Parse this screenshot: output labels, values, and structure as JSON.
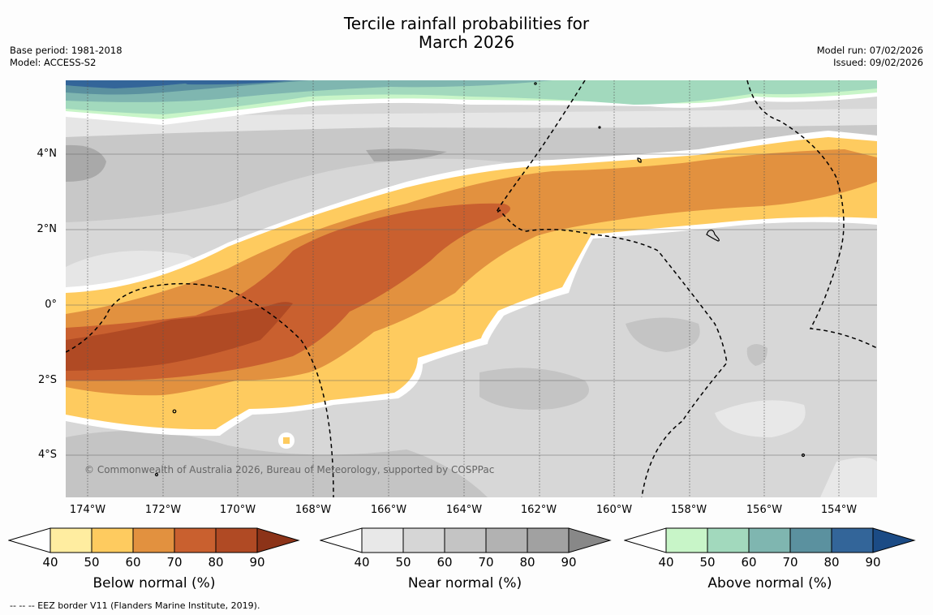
{
  "header": {
    "title_line1": "Tercile rainfall probabilities for",
    "title_line2": "March 2026",
    "base_period": "Base period: 1981-2018",
    "model": "Model: ACCESS-S2",
    "model_run": "Model run: 07/02/2026",
    "issued": "Issued: 09/02/2026"
  },
  "map": {
    "x_labels": [
      "174°W",
      "172°W",
      "170°W",
      "168°W",
      "166°W",
      "164°W",
      "162°W",
      "160°W",
      "158°W",
      "156°W",
      "154°W"
    ],
    "y_labels": [
      "4°N",
      "2°N",
      "0°",
      "2°S",
      "4°S"
    ],
    "copyright": "© Commonwealth of Australia 2026, Bureau of Meteorology, supported by COSPPac"
  },
  "colorbars": [
    {
      "title": "Below normal (%)",
      "ticks": [
        "40",
        "50",
        "60",
        "70",
        "80",
        "90"
      ],
      "colors": [
        "#ffeda0",
        "#fecb5f",
        "#e2913f",
        "#c9602f",
        "#b04a24"
      ],
      "low_arrow": "#ffffff",
      "high_arrow": "#8c3318"
    },
    {
      "title": "Near normal (%)",
      "ticks": [
        "40",
        "50",
        "60",
        "70",
        "80",
        "90"
      ],
      "colors": [
        "#e8e8e8",
        "#d6d6d6",
        "#c4c4c4",
        "#b2b2b2",
        "#a1a1a1"
      ],
      "low_arrow": "#ffffff",
      "high_arrow": "#888888"
    },
    {
      "title": "Above normal (%)",
      "ticks": [
        "40",
        "50",
        "60",
        "70",
        "80",
        "90"
      ],
      "colors": [
        "#c8f5c8",
        "#a2d9bd",
        "#7fb6b0",
        "#5b919f",
        "#336599"
      ],
      "low_arrow": "#ffffff",
      "high_arrow": "#1b4b85"
    }
  ],
  "footnote": "--  --  -- EEZ border V11 (Flanders Marine Institute, 2019)."
}
